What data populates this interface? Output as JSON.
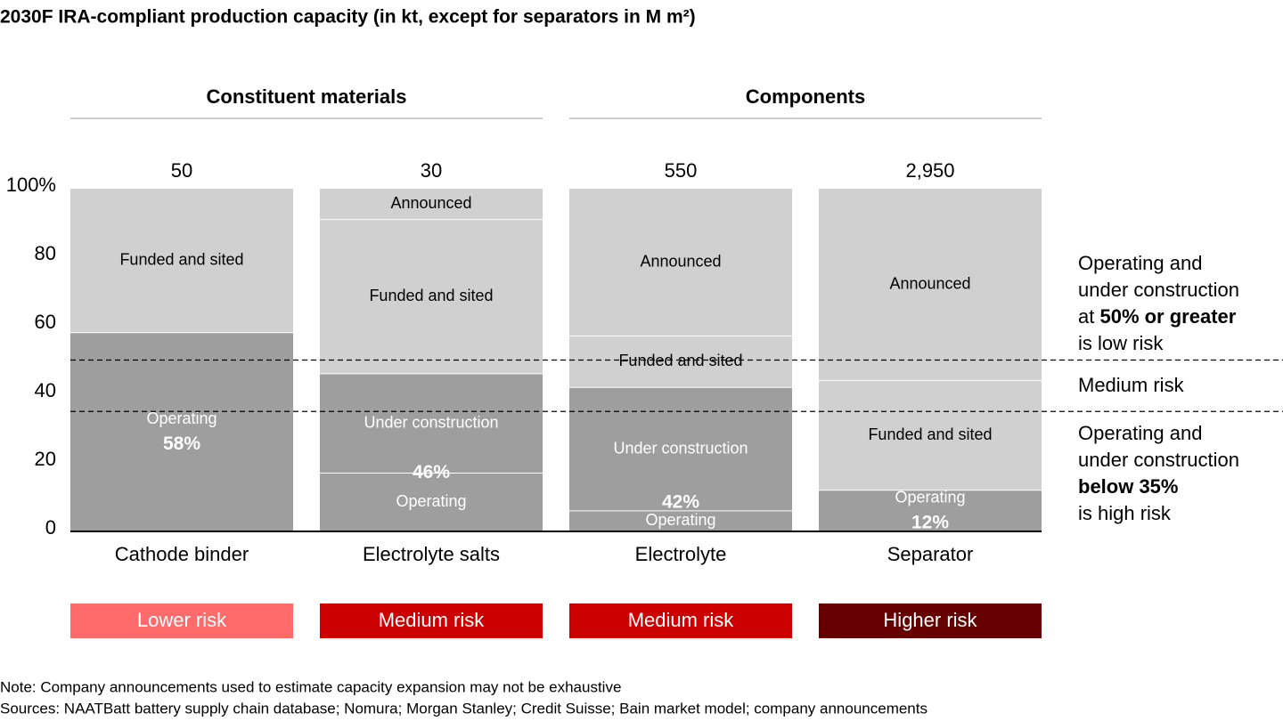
{
  "chart_data": {
    "type": "stacked_bar",
    "title": "2030F IRA-compliant production capacity (in kt, except for separators in M m²)",
    "groups": [
      {
        "name": "Constituent materials",
        "from": 0,
        "to": 1
      },
      {
        "name": "Components",
        "from": 2,
        "to": 3
      }
    ],
    "categories": [
      "Cathode binder",
      "Electrolyte salts",
      "Electrolyte",
      "Separator"
    ],
    "series": [
      {
        "name": "Operating",
        "color": "#9e9e9e",
        "text_color": "#ffffff",
        "values": [
          58,
          17,
          6,
          12
        ]
      },
      {
        "name": "Under construction",
        "color": "#9e9e9e",
        "text_color": "#ffffff",
        "values": [
          0,
          29,
          36,
          0
        ]
      },
      {
        "name": "Funded and sited",
        "color": "#d0d0d0",
        "text_color": "#000000",
        "values": [
          42,
          45,
          15,
          32
        ]
      },
      {
        "name": "Announced",
        "color": "#d0d0d0",
        "text_color": "#000000",
        "values": [
          0,
          9,
          43,
          56
        ]
      }
    ],
    "operating_and_construction": {
      "values": [
        58,
        46,
        42,
        12
      ],
      "value_labels": [
        "58%",
        "46%",
        "42%",
        "12%"
      ]
    },
    "totals": {
      "values": [
        50,
        30,
        550,
        2950
      ],
      "value_labels": [
        "50",
        "30",
        "550",
        "2,950"
      ]
    },
    "risk": [
      {
        "label": "Lower risk",
        "color": "#ff6b6b"
      },
      {
        "label": "Medium risk",
        "color": "#cc0000"
      },
      {
        "label": "Medium risk",
        "color": "#cc0000"
      },
      {
        "label": "Higher risk",
        "color": "#660000"
      }
    ],
    "ylim": [
      0,
      100
    ],
    "yticks": [
      0,
      20,
      40,
      60,
      80,
      {
        "value": 100,
        "label": "100%"
      }
    ],
    "thresholds": [
      50,
      35
    ],
    "annotations": [
      {
        "y": 50,
        "lines": [
          [
            {
              "text": "Operating and"
            }
          ],
          [
            {
              "text": "under construction"
            }
          ],
          [
            {
              "text": "at "
            },
            {
              "text": "50% or greater",
              "bold": true
            }
          ],
          [
            {
              "text": "is low risk"
            }
          ]
        ]
      },
      {
        "lines": [
          [
            {
              "text": "Medium risk"
            }
          ]
        ]
      },
      {
        "lines": [
          [
            {
              "text": "Operating and"
            }
          ],
          [
            {
              "text": "under construction"
            }
          ],
          [
            {
              "text": "below 35%",
              "bold": true
            }
          ],
          [
            {
              "text": "is high risk"
            }
          ]
        ]
      }
    ],
    "notes": [
      "Note: Company announcements used to estimate capacity expansion may not be exhaustive",
      "Sources: NAATBatt battery supply chain database; Nomura; Morgan Stanley; Credit Suisse; Bain market model; company announcements"
    ]
  }
}
